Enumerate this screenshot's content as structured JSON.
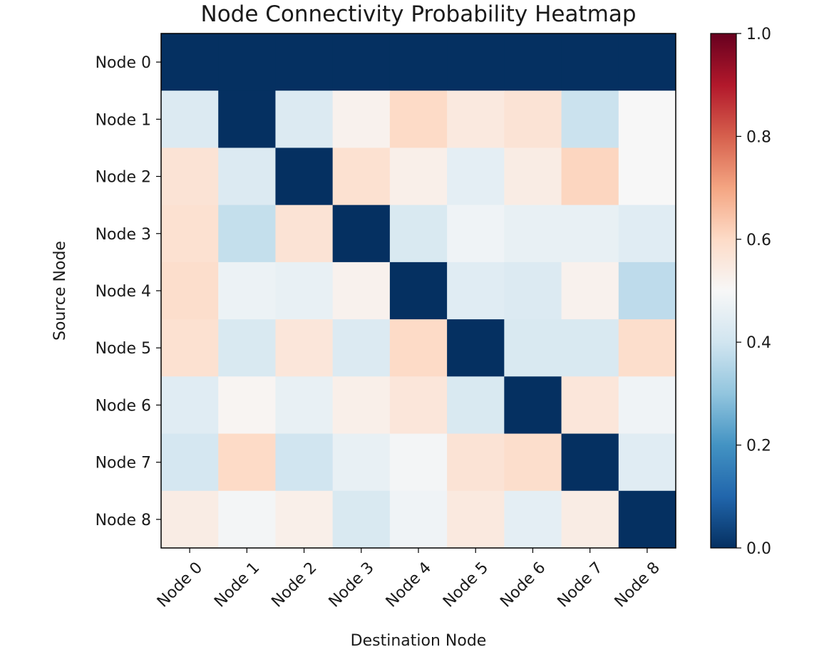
{
  "chart_data": {
    "type": "heatmap",
    "title": "Node Connectivity Probability Heatmap",
    "xlabel": "Destination Node",
    "ylabel": "Source Node",
    "x_categories": [
      "Node 0",
      "Node 1",
      "Node 2",
      "Node 3",
      "Node 4",
      "Node 5",
      "Node 6",
      "Node 7",
      "Node 8"
    ],
    "y_categories": [
      "Node 0",
      "Node 1",
      "Node 2",
      "Node 3",
      "Node 4",
      "Node 5",
      "Node 6",
      "Node 7",
      "Node 8"
    ],
    "values": [
      [
        0.0,
        0.0,
        0.0,
        0.0,
        0.0,
        0.0,
        0.0,
        0.0,
        0.0
      ],
      [
        0.43,
        0.0,
        0.43,
        0.52,
        0.6,
        0.55,
        0.57,
        0.39,
        0.5
      ],
      [
        0.57,
        0.43,
        0.0,
        0.58,
        0.53,
        0.45,
        0.54,
        0.61,
        0.5
      ],
      [
        0.58,
        0.38,
        0.57,
        0.0,
        0.42,
        0.48,
        0.46,
        0.46,
        0.44
      ],
      [
        0.59,
        0.47,
        0.46,
        0.52,
        0.0,
        0.44,
        0.43,
        0.52,
        0.37
      ],
      [
        0.58,
        0.42,
        0.56,
        0.43,
        0.6,
        0.0,
        0.42,
        0.42,
        0.59
      ],
      [
        0.44,
        0.51,
        0.46,
        0.53,
        0.56,
        0.42,
        0.0,
        0.56,
        0.48
      ],
      [
        0.41,
        0.6,
        0.4,
        0.46,
        0.49,
        0.57,
        0.59,
        0.0,
        0.44
      ],
      [
        0.54,
        0.49,
        0.53,
        0.42,
        0.48,
        0.55,
        0.45,
        0.54,
        0.0
      ]
    ],
    "colormap": "RdBu_r",
    "colormap_stops": [
      "#053061",
      "#2166ac",
      "#4393c3",
      "#92c5de",
      "#d1e5f0",
      "#f7f7f7",
      "#fddbc7",
      "#f4a582",
      "#d6604d",
      "#b2182b",
      "#67001f"
    ],
    "vmin": 0.0,
    "vmax": 1.0,
    "colorbar_ticks": [
      "0.0",
      "0.2",
      "0.4",
      "0.6",
      "0.8",
      "1.0"
    ],
    "grid": false
  }
}
